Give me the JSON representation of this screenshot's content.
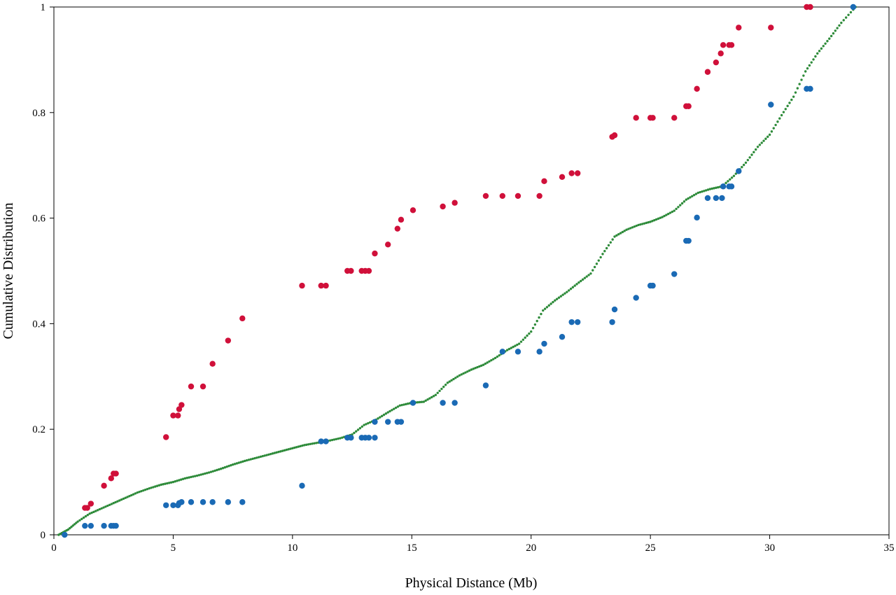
{
  "chart_data": {
    "type": "scatter",
    "title": "",
    "xlabel": "Physical Distance (Mb)",
    "ylabel": "Cumulative Distribution",
    "xlim": [
      0,
      35
    ],
    "ylim": [
      0,
      1
    ],
    "xticks": [
      0,
      5,
      10,
      15,
      20,
      25,
      30,
      35
    ],
    "yticks": [
      0,
      0.2,
      0.4,
      0.6,
      0.8,
      1
    ],
    "ytick_labels": [
      "0",
      "0.2",
      "0.4",
      "0.6",
      "0.8",
      "1"
    ],
    "grid": false,
    "legend": "none",
    "series": [
      {
        "color": "#d0103a",
        "marker": "large-dot",
        "points": [
          [
            1.3,
            0.051
          ],
          [
            1.4,
            0.051
          ],
          [
            1.55,
            0.059
          ],
          [
            2.1,
            0.093
          ],
          [
            2.4,
            0.107
          ],
          [
            2.5,
            0.116
          ],
          [
            2.6,
            0.116
          ],
          [
            4.7,
            0.185
          ],
          [
            5.0,
            0.226
          ],
          [
            5.2,
            0.226
          ],
          [
            5.25,
            0.238
          ],
          [
            5.35,
            0.246
          ],
          [
            5.75,
            0.281
          ],
          [
            6.25,
            0.281
          ],
          [
            6.65,
            0.324
          ],
          [
            7.3,
            0.368
          ],
          [
            7.9,
            0.41
          ],
          [
            10.4,
            0.472
          ],
          [
            11.2,
            0.472
          ],
          [
            11.4,
            0.472
          ],
          [
            12.3,
            0.5
          ],
          [
            12.45,
            0.5
          ],
          [
            12.9,
            0.5
          ],
          [
            13.05,
            0.5
          ],
          [
            13.2,
            0.5
          ],
          [
            13.45,
            0.533
          ],
          [
            14.0,
            0.55
          ],
          [
            14.4,
            0.58
          ],
          [
            14.55,
            0.597
          ],
          [
            15.05,
            0.615
          ],
          [
            16.3,
            0.622
          ],
          [
            16.8,
            0.629
          ],
          [
            18.1,
            0.642
          ],
          [
            18.8,
            0.642
          ],
          [
            19.45,
            0.642
          ],
          [
            20.35,
            0.642
          ],
          [
            20.55,
            0.67
          ],
          [
            21.3,
            0.678
          ],
          [
            21.7,
            0.685
          ],
          [
            21.95,
            0.685
          ],
          [
            23.4,
            0.754
          ],
          [
            23.5,
            0.757
          ],
          [
            24.4,
            0.79
          ],
          [
            25.0,
            0.79
          ],
          [
            25.1,
            0.79
          ],
          [
            26.0,
            0.79
          ],
          [
            26.5,
            0.812
          ],
          [
            26.6,
            0.812
          ],
          [
            26.95,
            0.845
          ],
          [
            27.4,
            0.877
          ],
          [
            27.75,
            0.895
          ],
          [
            27.95,
            0.912
          ],
          [
            28.05,
            0.928
          ],
          [
            28.3,
            0.928
          ],
          [
            28.4,
            0.928
          ],
          [
            28.7,
            0.961
          ],
          [
            30.05,
            0.961
          ],
          [
            31.55,
            1.0
          ],
          [
            31.7,
            1.0
          ]
        ]
      },
      {
        "color": "#1a6ab5",
        "marker": "large-dot",
        "points": [
          [
            0.45,
            0.0
          ],
          [
            1.3,
            0.017
          ],
          [
            1.55,
            0.017
          ],
          [
            2.1,
            0.017
          ],
          [
            2.4,
            0.017
          ],
          [
            2.5,
            0.017
          ],
          [
            2.6,
            0.017
          ],
          [
            4.7,
            0.056
          ],
          [
            5.0,
            0.056
          ],
          [
            5.2,
            0.056
          ],
          [
            5.25,
            0.06
          ],
          [
            5.35,
            0.062
          ],
          [
            5.75,
            0.062
          ],
          [
            6.25,
            0.062
          ],
          [
            6.65,
            0.062
          ],
          [
            7.3,
            0.062
          ],
          [
            7.9,
            0.062
          ],
          [
            10.4,
            0.093
          ],
          [
            11.2,
            0.177
          ],
          [
            11.4,
            0.177
          ],
          [
            12.3,
            0.184
          ],
          [
            12.45,
            0.184
          ],
          [
            12.9,
            0.184
          ],
          [
            13.05,
            0.184
          ],
          [
            13.2,
            0.184
          ],
          [
            13.45,
            0.184
          ],
          [
            13.45,
            0.214
          ],
          [
            14.0,
            0.214
          ],
          [
            14.4,
            0.214
          ],
          [
            14.55,
            0.214
          ],
          [
            15.05,
            0.25
          ],
          [
            16.3,
            0.25
          ],
          [
            16.8,
            0.25
          ],
          [
            18.1,
            0.283
          ],
          [
            18.8,
            0.347
          ],
          [
            19.45,
            0.347
          ],
          [
            20.35,
            0.347
          ],
          [
            20.55,
            0.362
          ],
          [
            21.3,
            0.375
          ],
          [
            21.7,
            0.403
          ],
          [
            21.95,
            0.403
          ],
          [
            23.4,
            0.403
          ],
          [
            23.5,
            0.427
          ],
          [
            24.4,
            0.449
          ],
          [
            25.0,
            0.472
          ],
          [
            25.1,
            0.472
          ],
          [
            26.0,
            0.494
          ],
          [
            26.5,
            0.557
          ],
          [
            26.6,
            0.557
          ],
          [
            26.95,
            0.601
          ],
          [
            27.4,
            0.638
          ],
          [
            27.75,
            0.638
          ],
          [
            28.0,
            0.638
          ],
          [
            28.05,
            0.66
          ],
          [
            28.3,
            0.66
          ],
          [
            28.4,
            0.66
          ],
          [
            28.7,
            0.689
          ],
          [
            30.05,
            0.815
          ],
          [
            31.55,
            0.845
          ],
          [
            31.7,
            0.845
          ],
          [
            33.5,
            1.0
          ]
        ]
      },
      {
        "color": "#2e8b3a",
        "marker": "small-dot",
        "curve": [
          [
            0.2,
            0.0
          ],
          [
            0.6,
            0.01
          ],
          [
            1.0,
            0.025
          ],
          [
            1.5,
            0.04
          ],
          [
            2.0,
            0.05
          ],
          [
            2.5,
            0.06
          ],
          [
            3.0,
            0.07
          ],
          [
            3.5,
            0.08
          ],
          [
            4.0,
            0.088
          ],
          [
            4.5,
            0.095
          ],
          [
            5.0,
            0.1
          ],
          [
            5.5,
            0.107
          ],
          [
            6.0,
            0.112
          ],
          [
            6.5,
            0.118
          ],
          [
            7.0,
            0.125
          ],
          [
            7.5,
            0.133
          ],
          [
            8.0,
            0.14
          ],
          [
            8.5,
            0.146
          ],
          [
            9.0,
            0.152
          ],
          [
            9.5,
            0.158
          ],
          [
            10.0,
            0.164
          ],
          [
            10.5,
            0.17
          ],
          [
            11.0,
            0.174
          ],
          [
            11.5,
            0.178
          ],
          [
            12.0,
            0.183
          ],
          [
            12.5,
            0.19
          ],
          [
            13.0,
            0.208
          ],
          [
            13.5,
            0.218
          ],
          [
            14.0,
            0.232
          ],
          [
            14.5,
            0.245
          ],
          [
            15.0,
            0.25
          ],
          [
            15.5,
            0.252
          ],
          [
            16.0,
            0.265
          ],
          [
            16.5,
            0.288
          ],
          [
            17.0,
            0.302
          ],
          [
            17.5,
            0.313
          ],
          [
            18.0,
            0.322
          ],
          [
            18.5,
            0.335
          ],
          [
            19.0,
            0.35
          ],
          [
            19.5,
            0.362
          ],
          [
            20.0,
            0.385
          ],
          [
            20.5,
            0.425
          ],
          [
            21.0,
            0.444
          ],
          [
            21.5,
            0.46
          ],
          [
            22.0,
            0.478
          ],
          [
            22.5,
            0.495
          ],
          [
            23.0,
            0.532
          ],
          [
            23.5,
            0.565
          ],
          [
            24.0,
            0.578
          ],
          [
            24.5,
            0.587
          ],
          [
            25.0,
            0.593
          ],
          [
            25.5,
            0.602
          ],
          [
            26.0,
            0.614
          ],
          [
            26.5,
            0.635
          ],
          [
            27.0,
            0.648
          ],
          [
            27.5,
            0.655
          ],
          [
            28.0,
            0.66
          ],
          [
            28.5,
            0.68
          ],
          [
            29.0,
            0.705
          ],
          [
            29.5,
            0.735
          ],
          [
            30.0,
            0.758
          ],
          [
            30.5,
            0.795
          ],
          [
            31.0,
            0.83
          ],
          [
            31.5,
            0.878
          ],
          [
            32.0,
            0.912
          ],
          [
            32.5,
            0.94
          ],
          [
            33.0,
            0.97
          ],
          [
            33.6,
            1.0
          ]
        ]
      }
    ]
  }
}
